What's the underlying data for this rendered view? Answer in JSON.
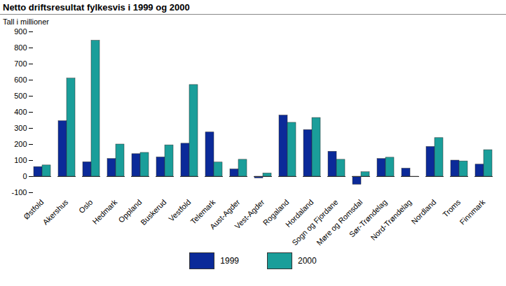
{
  "chart_data": {
    "type": "bar",
    "title": "Netto driftsresultat fylkesvis i 1999 og 2000",
    "subtitle": "Tall i millioner",
    "categories": [
      "Østfold",
      "Akershus",
      "Oslo",
      "Hedmark",
      "Oppland",
      "Buskerud",
      "Vestfold",
      "Telemark",
      "Aust-Agder",
      "Vest-Agder",
      "Rogaland",
      "Hordaland",
      "Sogn og Fjordane",
      "Møre og Romsdal",
      "Sør-Trøndelag",
      "Nord-Trøndelag",
      "Nordland",
      "Troms",
      "Finnmark"
    ],
    "series": [
      {
        "name": "1999",
        "color": "#0b2a99",
        "values": [
          60,
          345,
          90,
          110,
          140,
          120,
          205,
          275,
          45,
          -10,
          380,
          290,
          155,
          -50,
          110,
          50,
          185,
          100,
          75
        ]
      },
      {
        "name": "2000",
        "color": "#1a9e9a",
        "values": [
          70,
          610,
          845,
          200,
          148,
          195,
          570,
          88,
          105,
          20,
          335,
          365,
          105,
          28,
          118,
          -3,
          240,
          95,
          165
        ]
      }
    ],
    "ylim": [
      -100,
      900
    ],
    "yticks": [
      -100,
      0,
      100,
      200,
      300,
      400,
      500,
      600,
      700,
      800,
      900
    ],
    "grid": false,
    "legend": "bottom"
  }
}
